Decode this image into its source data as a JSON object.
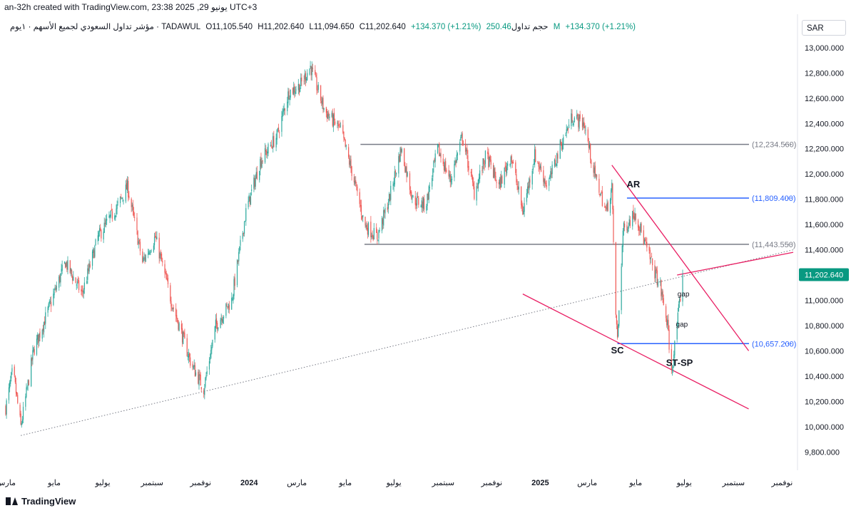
{
  "header": {
    "created_text": "an-32h created with TradingView.com, 23:38 2025 ,29 يونيو UTC+3"
  },
  "symbol_bar": {
    "title": "مؤشر تداول السعودي لجميع الأسهم · ١يوم · TADAWUL",
    "open": "O11,105.540",
    "high": "H11,202.640",
    "low": "L11,094.650",
    "close": "C11,202.640",
    "change": "+134.370 (+1.21%)",
    "volume_label": "حجم تداول",
    "volume_value": "250.46 M",
    "volume_change": "+134.370 (+1.21%)"
  },
  "currency": "SAR",
  "footer": {
    "brand": "TradingView"
  },
  "colors": {
    "up": "#26a69a",
    "down": "#ef5350",
    "wedge": "#e91e63",
    "level_gray": "#787b86",
    "level_blue": "#2962ff",
    "last_price_bg": "#089981"
  },
  "chart_data": {
    "type": "candlestick",
    "y_axis": {
      "min": 9700,
      "max": 13050,
      "ticks": [
        9800,
        10000,
        10200,
        10400,
        10600,
        10800,
        11000,
        11200,
        11400,
        11600,
        11800,
        12000,
        12200,
        12400,
        12600,
        12800,
        13000
      ],
      "tick_labels": [
        "9,800.000",
        "10,000.000",
        "10,200.000",
        "10,400.000",
        "10,600.000",
        "10,800.000",
        "11,000.000",
        "11,200.000",
        "11,400.000",
        "11,600.000",
        "11,800.000",
        "12,000.000",
        "12,200.000",
        "12,400.000",
        "12,600.000",
        "12,800.000",
        "13,000.000"
      ]
    },
    "x_axis": {
      "start": "2023-03-01",
      "end": "2025-11-15",
      "ticks": [
        {
          "date": "2023-03-01",
          "label": "مارس",
          "bold": false
        },
        {
          "date": "2023-05-01",
          "label": "مايو",
          "bold": false
        },
        {
          "date": "2023-07-01",
          "label": "يوليو",
          "bold": false
        },
        {
          "date": "2023-09-01",
          "label": "سبتمبر",
          "bold": false
        },
        {
          "date": "2023-11-01",
          "label": "نوفمبر",
          "bold": false
        },
        {
          "date": "2024-01-01",
          "label": "2024",
          "bold": true
        },
        {
          "date": "2024-03-01",
          "label": "مارس",
          "bold": false
        },
        {
          "date": "2024-05-01",
          "label": "مايو",
          "bold": false
        },
        {
          "date": "2024-07-01",
          "label": "يوليو",
          "bold": false
        },
        {
          "date": "2024-09-01",
          "label": "سبتمبر",
          "bold": false
        },
        {
          "date": "2024-11-01",
          "label": "نوفمبر",
          "bold": false
        },
        {
          "date": "2025-01-01",
          "label": "2025",
          "bold": true
        },
        {
          "date": "2025-03-01",
          "label": "مارس",
          "bold": false
        },
        {
          "date": "2025-05-01",
          "label": "مايو",
          "bold": false
        },
        {
          "date": "2025-07-01",
          "label": "يوليو",
          "bold": false
        },
        {
          "date": "2025-09-01",
          "label": "سبتمبر",
          "bold": false
        },
        {
          "date": "2025-11-01",
          "label": "نوفمبر",
          "bold": false
        }
      ]
    },
    "price_path": [
      [
        "2023-03-01",
        10150
      ],
      [
        "2023-03-10",
        10450
      ],
      [
        "2023-03-20",
        10000
      ],
      [
        "2023-04-05",
        10600
      ],
      [
        "2023-04-25",
        10950
      ],
      [
        "2023-05-15",
        11300
      ],
      [
        "2023-06-05",
        11050
      ],
      [
        "2023-06-25",
        11500
      ],
      [
        "2023-07-20",
        11750
      ],
      [
        "2023-08-01",
        11900
      ],
      [
        "2023-08-20",
        11300
      ],
      [
        "2023-09-05",
        11500
      ],
      [
        "2023-09-25",
        11000
      ],
      [
        "2023-10-20",
        10500
      ],
      [
        "2023-11-05",
        10300
      ],
      [
        "2023-11-20",
        10800
      ],
      [
        "2023-12-10",
        11000
      ],
      [
        "2023-12-28",
        11700
      ],
      [
        "2024-01-15",
        12100
      ],
      [
        "2024-02-05",
        12300
      ],
      [
        "2024-02-20",
        12650
      ],
      [
        "2024-03-05",
        12700
      ],
      [
        "2024-03-18",
        12850
      ],
      [
        "2024-04-05",
        12500
      ],
      [
        "2024-04-25",
        12350
      ],
      [
        "2024-05-10",
        12000
      ],
      [
        "2024-05-25",
        11600
      ],
      [
        "2024-06-10",
        11500
      ],
      [
        "2024-06-25",
        11800
      ],
      [
        "2024-07-10",
        12200
      ],
      [
        "2024-07-25",
        11800
      ],
      [
        "2024-08-10",
        11750
      ],
      [
        "2024-08-25",
        12200
      ],
      [
        "2024-09-10",
        11950
      ],
      [
        "2024-09-25",
        12300
      ],
      [
        "2024-10-10",
        11850
      ],
      [
        "2024-10-25",
        12150
      ],
      [
        "2024-11-10",
        11900
      ],
      [
        "2024-11-25",
        12150
      ],
      [
        "2024-12-10",
        11700
      ],
      [
        "2024-12-25",
        12150
      ],
      [
        "2025-01-10",
        11900
      ],
      [
        "2025-01-25",
        12200
      ],
      [
        "2025-02-10",
        12450
      ],
      [
        "2025-02-25",
        12400
      ],
      [
        "2025-03-10",
        12000
      ],
      [
        "2025-03-25",
        11700
      ],
      [
        "2025-04-01",
        11900
      ],
      [
        "2025-04-05",
        11000
      ],
      [
        "2025-04-08",
        10680
      ],
      [
        "2025-04-15",
        11550
      ],
      [
        "2025-04-30",
        11700
      ],
      [
        "2025-05-15",
        11400
      ],
      [
        "2025-06-01",
        11100
      ],
      [
        "2025-06-10",
        10800
      ],
      [
        "2025-06-15",
        10420
      ],
      [
        "2025-06-22",
        10800
      ],
      [
        "2025-06-29",
        11202.64
      ]
    ],
    "levels": [
      {
        "value": 12234.56,
        "label": "(12,234.560)",
        "color": "gray",
        "from": "2024-05-20"
      },
      {
        "value": 11809.4,
        "label": "(11,809.400)",
        "color": "blue",
        "from": "2025-04-20"
      },
      {
        "value": 11443.55,
        "label": "(11,443.550)",
        "color": "gray",
        "from": "2024-05-25"
      },
      {
        "value": 10657.2,
        "label": "(10,657.200)",
        "color": "blue",
        "from": "2025-04-08"
      }
    ],
    "trend_line": {
      "from": [
        "2023-03-20",
        9930
      ],
      "to": [
        "2025-11-15",
        11400
      ],
      "style": "dotted"
    },
    "wedge_upper": {
      "from": [
        "2025-04-01",
        12070
      ],
      "to": [
        "2025-09-20",
        10600
      ]
    },
    "wedge_lower": {
      "from": [
        "2024-12-10",
        11050
      ],
      "to": [
        "2025-09-20",
        10140
      ]
    },
    "wedge_top": {
      "from": [
        "2025-06-22",
        11200
      ],
      "to": [
        "2025-11-15",
        11380
      ]
    },
    "annotations": [
      {
        "text": "AR",
        "date": "2025-04-28",
        "value": 11895,
        "size": 13,
        "bold": true
      },
      {
        "text": "SC",
        "date": "2025-04-08",
        "value": 10580,
        "size": 13,
        "bold": true
      },
      {
        "text": "ST-SP",
        "date": "2025-06-25",
        "value": 10480,
        "size": 13,
        "bold": true
      },
      {
        "text": "gap",
        "date": "2025-06-30",
        "value": 11030,
        "size": 10,
        "bold": false
      },
      {
        "text": "gap",
        "date": "2025-06-28",
        "value": 10790,
        "size": 10,
        "bold": false
      }
    ],
    "last_price": {
      "value": 11202.64,
      "label": "11,202.640"
    }
  }
}
